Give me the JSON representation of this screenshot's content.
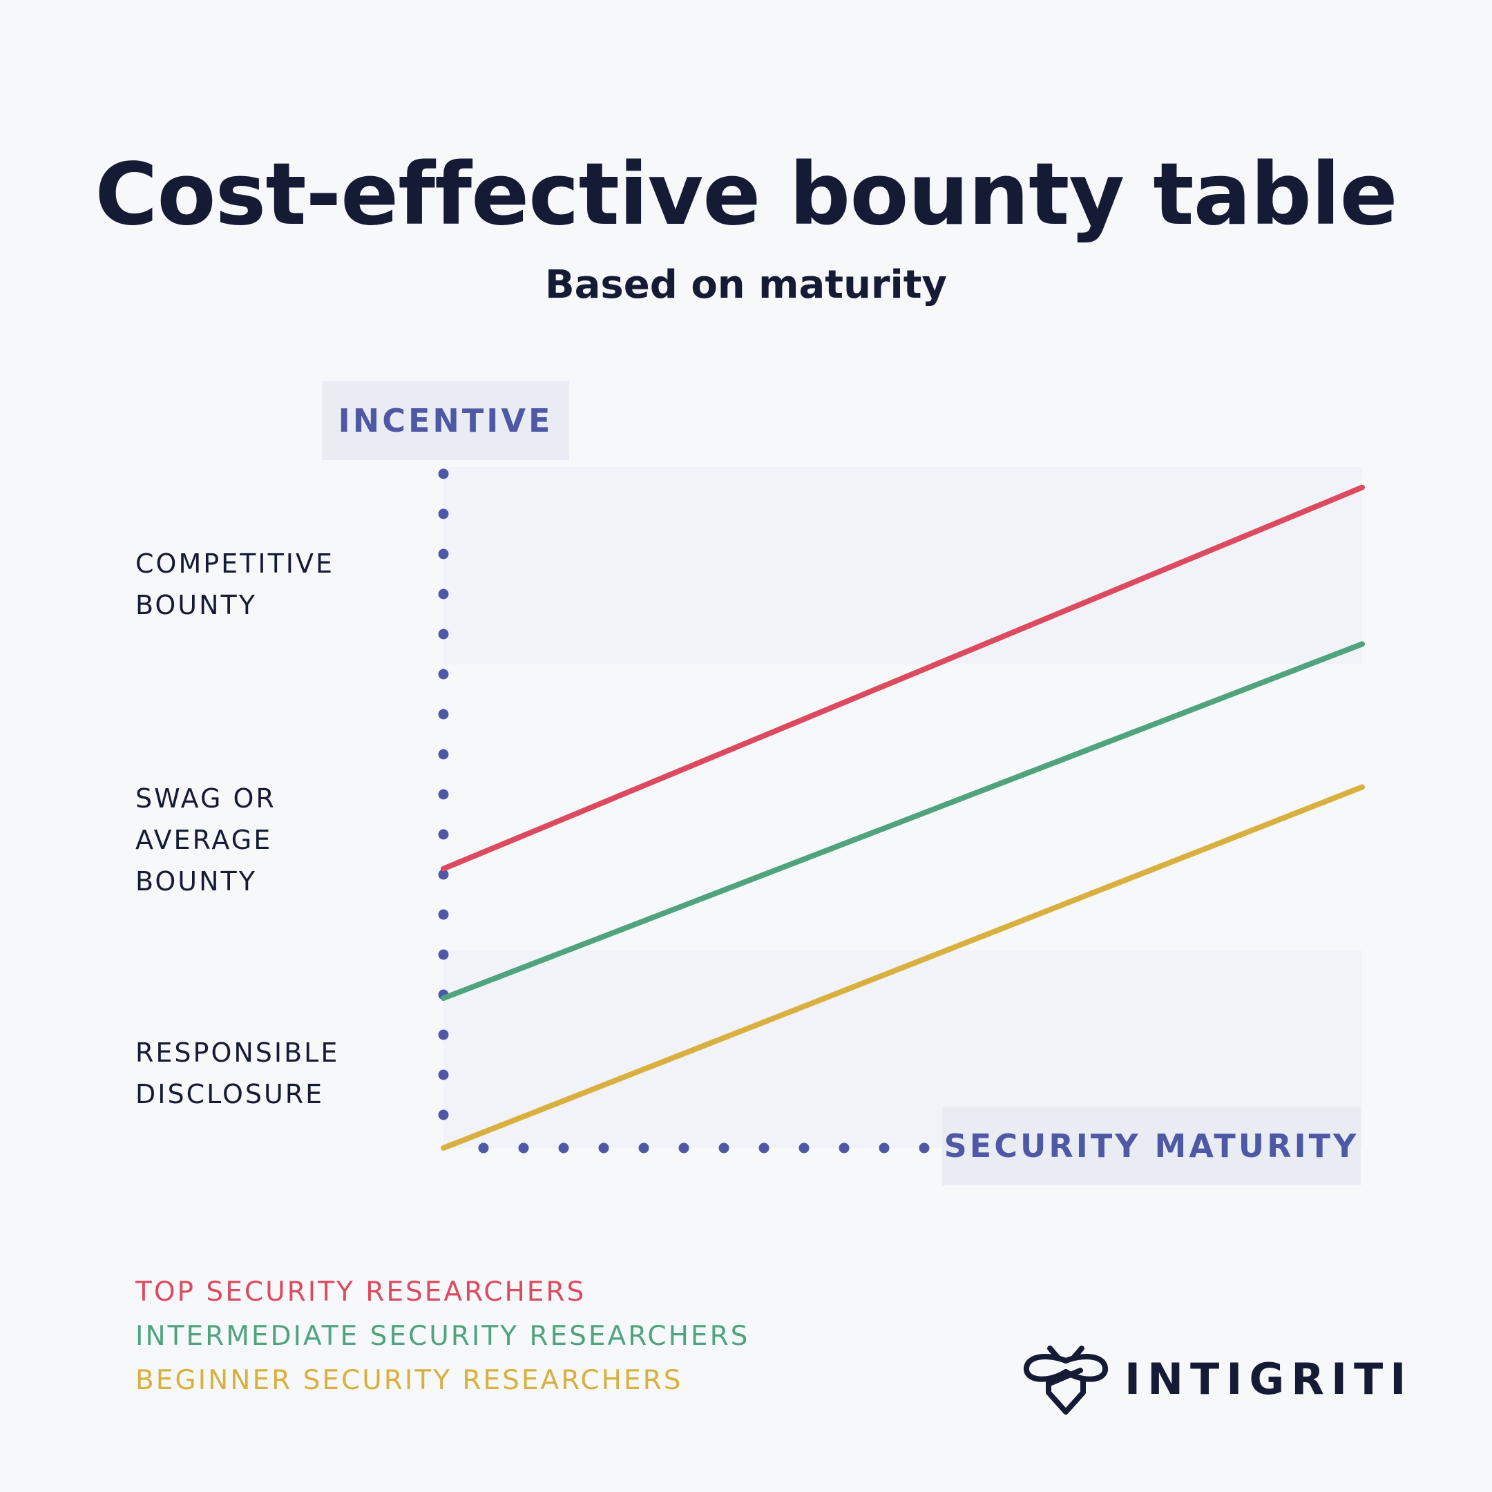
{
  "title": "Cost-effective bounty table",
  "subtitle": "Based on maturity",
  "logo_text": "INTIGRITI",
  "colors": {
    "top": "#dc4a5f",
    "intermediate": "#4fa37e",
    "beginner": "#d9af3f",
    "axis": "#4e58a5",
    "band": "#f1f3f8"
  },
  "chart_data": {
    "type": "line",
    "ylabel": "INCENTIVE",
    "xlabel": "SECURITY MATURITY",
    "xlim": [
      0,
      1
    ],
    "ylim": [
      0,
      1
    ],
    "y_categories": [
      {
        "label": "COMPETITIVE\nBOUNTY",
        "band": [
          0.71,
          1.0
        ]
      },
      {
        "label": "SWAG OR\nAVERAGE\nBOUNTY",
        "band": [
          0.29,
          0.71
        ]
      },
      {
        "label": "RESPONSIBLE\nDISCLOSURE",
        "band": [
          0.0,
          0.29
        ]
      }
    ],
    "series": [
      {
        "name": "TOP SECURITY RESEARCHERS",
        "color": "#dc4a5f",
        "x": [
          0,
          1
        ],
        "y": [
          0.41,
          0.97
        ]
      },
      {
        "name": "INTERMEDIATE SECURITY RESEARCHERS",
        "color": "#4fa37e",
        "x": [
          0,
          1
        ],
        "y": [
          0.22,
          0.74
        ]
      },
      {
        "name": "BEGINNER SECURITY RESEARCHERS",
        "color": "#d9af3f",
        "x": [
          0,
          1
        ],
        "y": [
          0.0,
          0.53
        ]
      }
    ],
    "legend": "bottom-left",
    "grid": false
  }
}
